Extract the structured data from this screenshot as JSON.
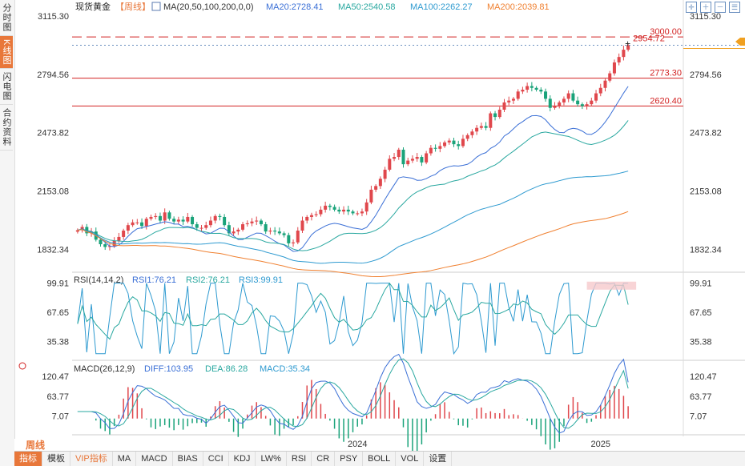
{
  "sidebar": {
    "tabs": [
      {
        "label": "分时图",
        "active": false
      },
      {
        "label": "K线图",
        "active": true
      },
      {
        "label": "闪电图",
        "active": false
      },
      {
        "label": "合约资料",
        "active": false
      }
    ]
  },
  "header": {
    "instrument": "现货黄金",
    "period_bracket": "【周线】",
    "ma_params": "MA(20,50,100,200,0,0)",
    "ma20": "MA20:2728.41",
    "ma50": "MA50:2540.58",
    "ma100": "MA100:2262.27",
    "ma200": "MA200:2039.81"
  },
  "colors": {
    "up": "#e0474c",
    "down": "#1aa37a",
    "ma20": "#3a6fd6",
    "ma50": "#2aa8a0",
    "ma100": "#2e9ad0",
    "ma200": "#f08030",
    "accent": "#e8773a",
    "level_line": "#d22222"
  },
  "price_axis": {
    "ticks": [
      "3115.30",
      "2794.56",
      "2473.82",
      "2153.08",
      "1832.34"
    ]
  },
  "levels": [
    {
      "label": "3000.00",
      "value": 3000.0,
      "style": "dashed"
    },
    {
      "label": "2773.30",
      "value": 2773.3,
      "style": "solid"
    },
    {
      "label": "2620.40",
      "value": 2620.4,
      "style": "solid"
    }
  ],
  "last_price_label": "2954.72",
  "rsi": {
    "title": "RSI(14,14,2)",
    "rsi1": "RSI1:76.21",
    "rsi2": "RSI2:76.21",
    "rsi3": "RSI3:99.91",
    "ticks": [
      "99.91",
      "67.65",
      "35.38"
    ]
  },
  "macd": {
    "title": "MACD(26,12,9)",
    "diff": "DIFF:103.95",
    "dea": "DEA:86.28",
    "macd": "MACD:35.34",
    "ticks": [
      "120.47",
      "63.77",
      "7.07"
    ]
  },
  "x_axis": {
    "labels": [
      "2024",
      "2025"
    ]
  },
  "period_button": "周线",
  "bottom_tabs": [
    "指标",
    "模板",
    "VIP指标",
    "MA",
    "MACD",
    "BIAS",
    "CCI",
    "KDJ",
    "LW%",
    "RSI",
    "CR",
    "PSY",
    "BOLL",
    "VOL",
    "设置"
  ],
  "chart_data": {
    "type": "candlestick",
    "title": "现货黄金【周线】",
    "ylim": [
      1750,
      3115.3
    ],
    "closes": [
      1937,
      1955,
      1920,
      1930,
      1885,
      1860,
      1845,
      1850,
      1880,
      1900,
      1935,
      1965,
      1980,
      1980,
      1960,
      2000,
      2010,
      2015,
      1990,
      2035,
      2000,
      1985,
      1995,
      1985,
      2010,
      1970,
      1950,
      1950,
      1965,
      1990,
      2015,
      2010,
      1965,
      1920,
      1930,
      1940,
      1970,
      1975,
      1985,
      1990,
      1970,
      1930,
      1935,
      1930,
      1920,
      1910,
      1865,
      1870,
      1935,
      1990,
      2010,
      2020,
      2025,
      2050,
      2072,
      2065,
      2050,
      2040,
      2050,
      2040,
      2030,
      2030,
      2040,
      2090,
      2160,
      2180,
      2220,
      2270,
      2330,
      2340,
      2380,
      2300,
      2320,
      2330,
      2340,
      2310,
      2360,
      2390,
      2385,
      2400,
      2420,
      2430,
      2410,
      2400,
      2440,
      2460,
      2480,
      2500,
      2510,
      2500,
      2580,
      2560,
      2600,
      2640,
      2650,
      2660,
      2700,
      2710,
      2730,
      2720,
      2710,
      2700,
      2660,
      2610,
      2620,
      2640,
      2660,
      2690,
      2650,
      2630,
      2620,
      2630,
      2650,
      2690,
      2720,
      2760,
      2800,
      2860,
      2890,
      2930,
      2954.72
    ],
    "ma20_end": 2728.41,
    "ma50_end": 2540.58,
    "ma100_end": 2262.27,
    "ma200_end": 2039.81,
    "rsi_ylim": [
      20,
      105
    ],
    "rsi1_end": 76.21,
    "rsi2_end": 76.21,
    "rsi3_end": 99.91,
    "macd_ylim": [
      -35,
      130
    ],
    "diff_end": 103.95,
    "dea_end": 86.28,
    "macd_end": 35.34
  }
}
